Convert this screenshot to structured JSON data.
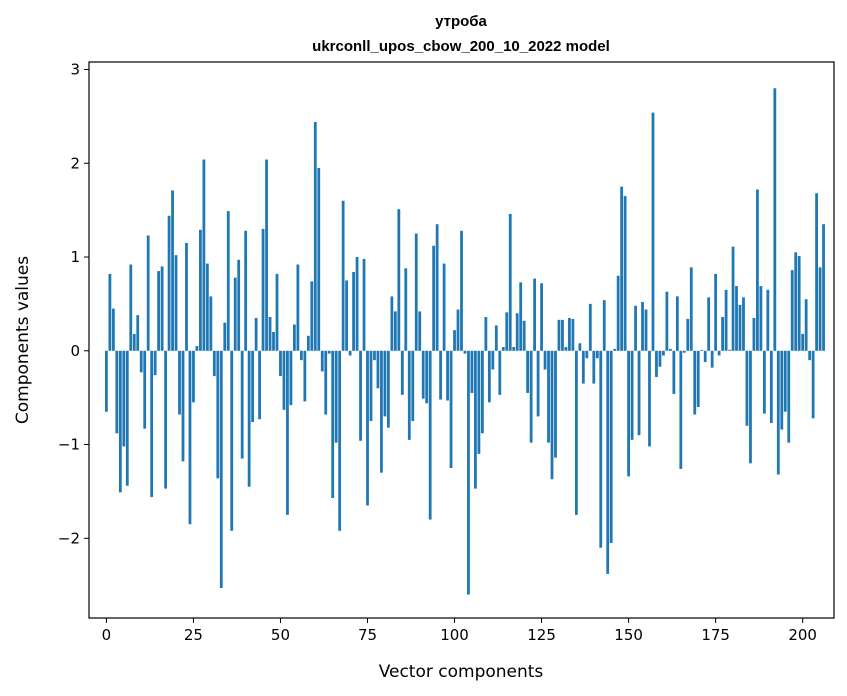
{
  "chart_data": {
    "type": "bar",
    "title": "утроба",
    "subtitle": "ukrconll_upos_cbow_200_10_2022 model",
    "xlabel": "Vector components",
    "ylabel": "Components values",
    "xlim": [
      -5,
      209
    ],
    "ylim": [
      -2.85,
      3.08
    ],
    "xticks": [
      0,
      25,
      50,
      75,
      100,
      125,
      150,
      175,
      200
    ],
    "yticks": [
      -2,
      -1,
      0,
      1,
      2,
      3
    ],
    "ytick_labels": [
      "−2",
      "−1",
      "0",
      "1",
      "2",
      "3"
    ],
    "bar_color": "#1f77b4",
    "values": [
      -0.65,
      0.82,
      0.45,
      -0.88,
      -1.51,
      -1.02,
      -1.44,
      0.92,
      0.18,
      0.38,
      -0.23,
      -0.83,
      1.23,
      -1.56,
      -0.26,
      0.85,
      0.9,
      -1.47,
      1.44,
      1.71,
      1.02,
      -0.68,
      -1.18,
      1.15,
      -1.85,
      -0.55,
      0.05,
      1.29,
      2.04,
      0.93,
      0.58,
      -0.27,
      -1.36,
      -2.53,
      0.3,
      1.49,
      -1.92,
      0.78,
      0.97,
      -1.15,
      1.28,
      -1.45,
      -0.76,
      0.35,
      -0.73,
      1.3,
      2.04,
      0.36,
      0.2,
      0.82,
      -0.27,
      -0.63,
      -1.75,
      -0.58,
      0.28,
      0.92,
      -0.1,
      -0.54,
      0.16,
      0.74,
      2.44,
      1.95,
      -0.22,
      -0.68,
      -0.03,
      -1.57,
      -0.98,
      -1.92,
      1.6,
      0.75,
      -0.05,
      0.84,
      1.0,
      -0.96,
      0.98,
      -1.65,
      -0.75,
      -0.1,
      -0.4,
      -1.3,
      -0.7,
      -0.82,
      0.58,
      0.42,
      1.51,
      -0.47,
      0.88,
      -0.95,
      -0.75,
      1.25,
      0.42,
      -0.51,
      -0.56,
      -1.8,
      1.12,
      1.35,
      -0.52,
      0.93,
      -0.53,
      -1.25,
      0.22,
      0.44,
      1.28,
      -0.03,
      -2.6,
      -0.45,
      -1.47,
      -1.1,
      -0.88,
      0.36,
      -0.55,
      -0.2,
      0.27,
      -0.47,
      0.04,
      0.41,
      1.46,
      0.04,
      0.4,
      0.73,
      0.32,
      -0.45,
      -0.98,
      0.77,
      -0.7,
      0.72,
      -0.2,
      -0.98,
      -1.37,
      -1.14,
      0.33,
      0.33,
      0.04,
      0.35,
      0.34,
      -1.75,
      0.08,
      -0.35,
      -0.08,
      0.5,
      -0.35,
      -0.08,
      -2.1,
      0.54,
      -2.38,
      -2.05,
      0.02,
      0.8,
      1.75,
      1.65,
      -1.34,
      -0.95,
      0.48,
      -0.9,
      0.52,
      0.44,
      -1.02,
      2.54,
      -0.28,
      -0.17,
      -0.05,
      0.63,
      0.02,
      -0.46,
      0.58,
      -1.26,
      -0.02,
      0.34,
      0.89,
      -0.68,
      -0.6,
      0.01,
      -0.12,
      0.57,
      -0.18,
      0.82,
      -0.05,
      0.36,
      0.65,
      0.01,
      1.11,
      0.69,
      0.49,
      0.57,
      -0.8,
      -1.2,
      0.35,
      1.72,
      0.69,
      -0.67,
      0.65,
      -0.77,
      2.8,
      -1.32,
      -0.84,
      -0.65,
      -0.98,
      0.86,
      1.05,
      1.01,
      0.18,
      0.55,
      -0.1,
      -0.72,
      1.68,
      0.89,
      1.35
    ]
  }
}
